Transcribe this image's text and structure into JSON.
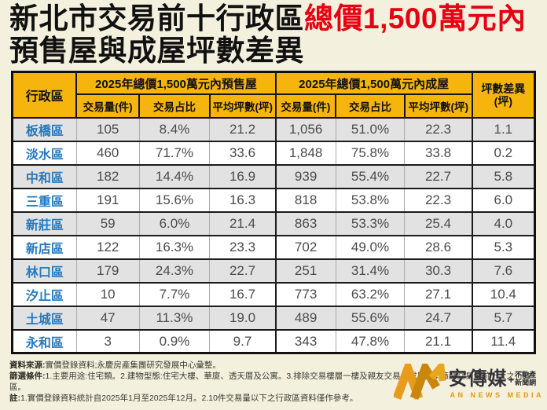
{
  "title": {
    "line1_black": "新北市交易前十行政區",
    "line1_red": "總價1,500萬元內",
    "line2": "預售屋與成屋坪數差異"
  },
  "table": {
    "header": {
      "district": "行政區",
      "group1": "2025年總價1,500萬元內預售屋",
      "group2": "2025年總價1,500萬元內成屋",
      "diff_line1": "坪數差異",
      "diff_line2": "(坪)",
      "sub": [
        "交易量(件)",
        "交易占比",
        "平均坪數(坪)",
        "交易量(件)",
        "交易占比",
        "平均坪數(坪)"
      ]
    }
  },
  "chart_data": {
    "type": "table",
    "title": "新北市交易前十行政區總價1,500萬元內預售屋與成屋坪數差異",
    "columns": [
      "行政區",
      "預售屋交易量(件)",
      "預售屋交易占比",
      "預售屋平均坪數(坪)",
      "成屋交易量(件)",
      "成屋交易占比",
      "成屋平均坪數(坪)",
      "坪數差異(坪)"
    ],
    "rows": [
      [
        "板橋區",
        "105",
        "8.4%",
        "21.2",
        "1,056",
        "51.0%",
        "22.3",
        "1.1"
      ],
      [
        "淡水區",
        "460",
        "71.7%",
        "33.6",
        "1,848",
        "75.8%",
        "33.8",
        "0.2"
      ],
      [
        "中和區",
        "182",
        "14.4%",
        "16.9",
        "939",
        "55.4%",
        "22.7",
        "5.8"
      ],
      [
        "三重區",
        "191",
        "15.6%",
        "16.3",
        "818",
        "53.8%",
        "22.3",
        "6.0"
      ],
      [
        "新莊區",
        "59",
        "6.0%",
        "21.4",
        "863",
        "53.3%",
        "25.4",
        "4.0"
      ],
      [
        "新店區",
        "122",
        "16.3%",
        "23.3",
        "702",
        "49.0%",
        "28.6",
        "5.3"
      ],
      [
        "林口區",
        "179",
        "24.3%",
        "22.7",
        "251",
        "31.4%",
        "30.3",
        "7.6"
      ],
      [
        "汐止區",
        "10",
        "7.7%",
        "16.7",
        "773",
        "63.2%",
        "27.1",
        "10.4"
      ],
      [
        "土城區",
        "47",
        "11.3%",
        "19.0",
        "489",
        "55.6%",
        "24.7",
        "5.7"
      ],
      [
        "永和區",
        "3",
        "0.9%",
        "9.7",
        "343",
        "47.8%",
        "21.1",
        "11.4"
      ]
    ]
  },
  "footer": {
    "source_label": "資料來源:",
    "source_text": "實價登錄資料;永慶房產集團研究發展中心彙整。",
    "filter_label": "篩選條件:",
    "filter_text": "1.主要用途:住宅類。2.建物型態:住宅大樓、華廈、透天厝及公寓。3.排除交易樓層一樓及親友交易之成屋。4.篩選交易量前十大之行政區。",
    "note_label": "註:",
    "note_text": "1.實價登錄資料統計自2025年1月至2025年12月。2.10件交易量以下之行政區資料僅作參考。"
  },
  "logo": {
    "name": "安傳媒",
    "plus": "+",
    "suffix_line1": "不動產",
    "suffix_line2": "新聞網",
    "sub": "AN NEWS MEDIA"
  },
  "colors": {
    "page_bg": "#F3F1DE",
    "header_bg": "#F5B50D",
    "accent_red": "#E60012",
    "district_blue": "#2479BE",
    "row_alt": "#E2E2E2",
    "logo_orange": "#E89C1C",
    "logo_gold": "#C8860A"
  }
}
